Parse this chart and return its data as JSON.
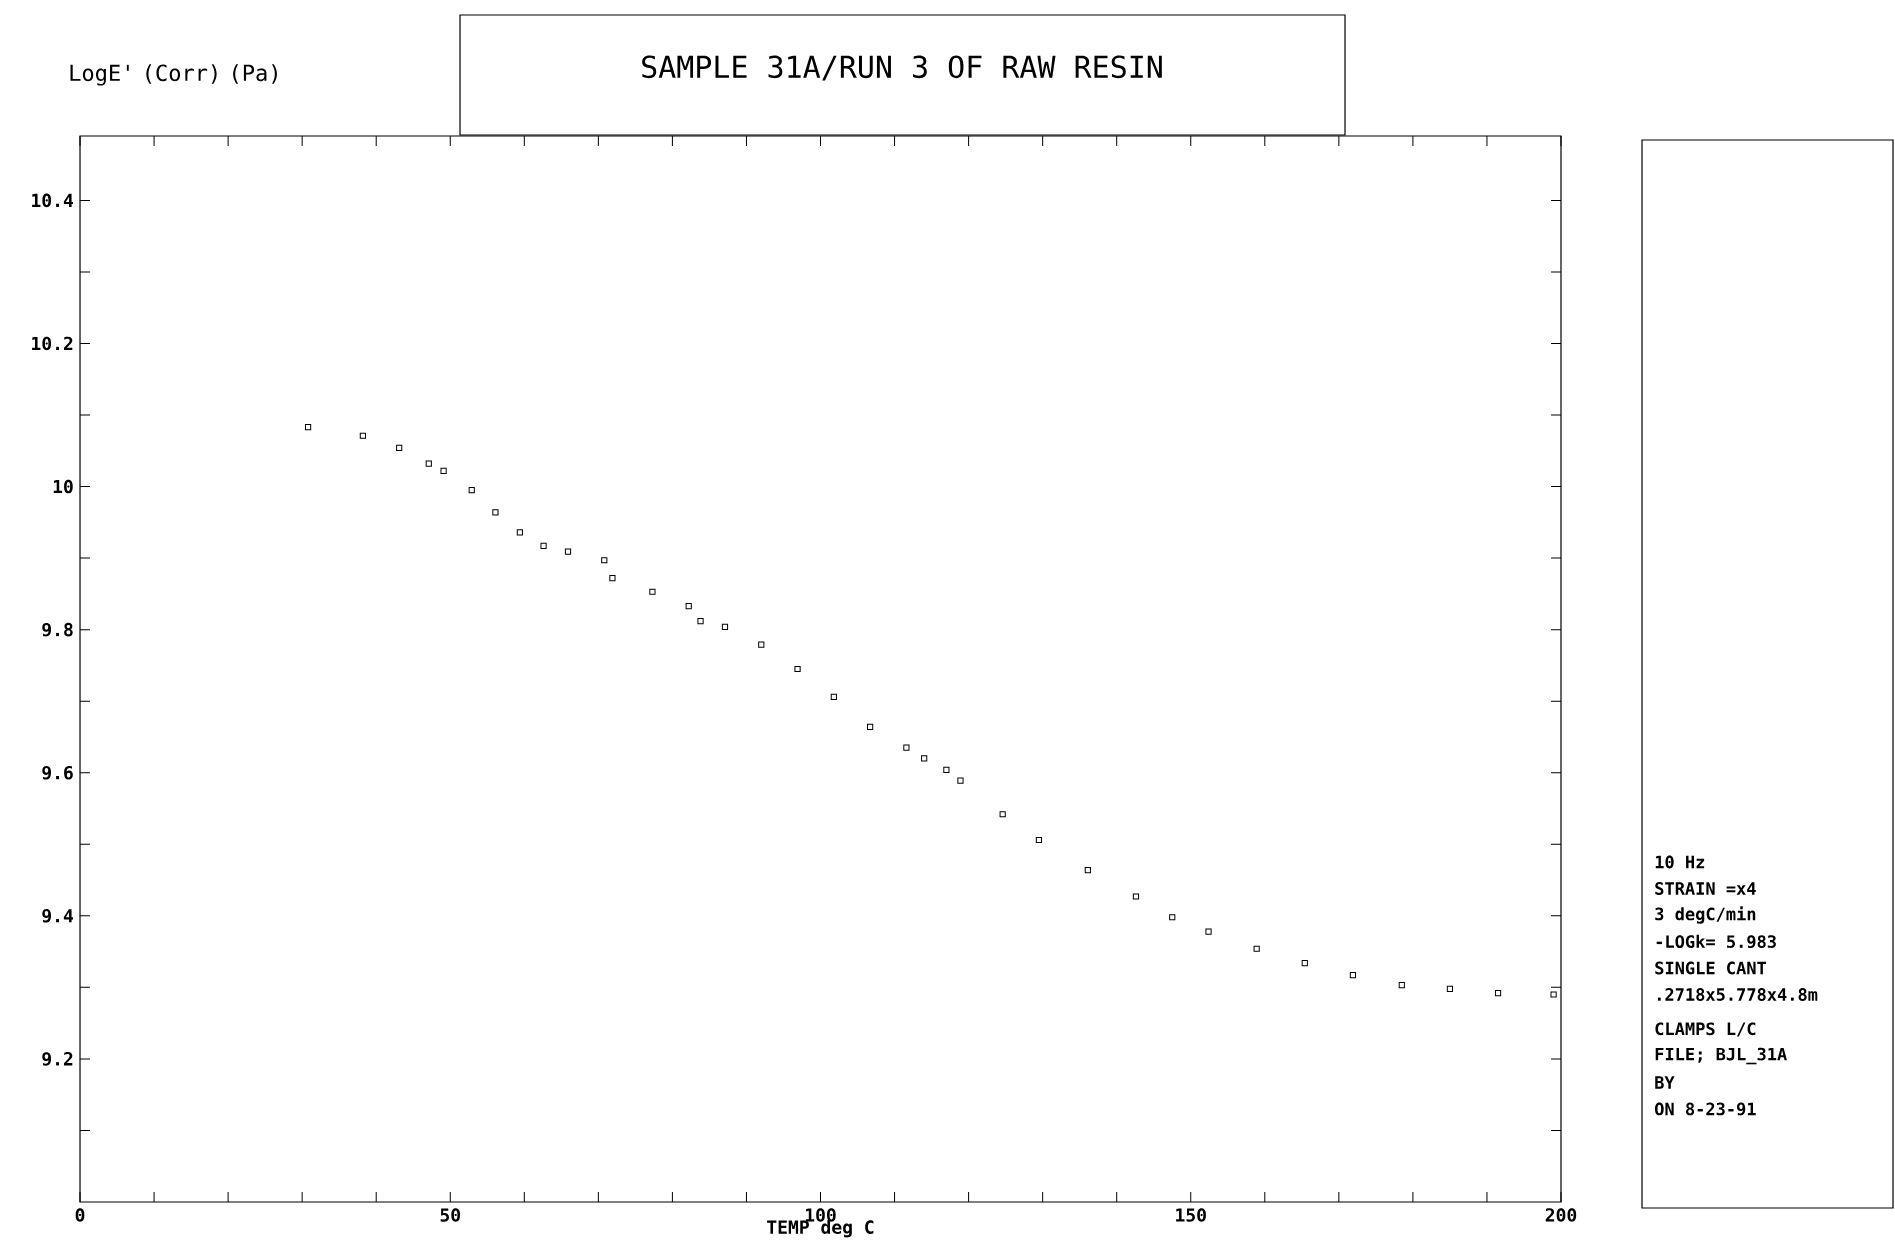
{
  "chart_data": {
    "type": "scatter",
    "title": "SAMPLE 31A/RUN 3 OF RAW RESIN",
    "xlabel": "TEMP deg C",
    "ylabel": "LogE' (Corr) (Pa)",
    "annotations": [
      "10 Hz",
      "STRAIN =x4",
      "3 degC/min",
      "-LOGk= 5.983",
      "SINGLE CANT",
      ".2718x5.778x4.8m",
      "CLAMPS L/C",
      "FILE; BJL_31A",
      "BY",
      "ON 8-23-91"
    ],
    "x": [
      30.8,
      38.2,
      43.1,
      47.1,
      49.1,
      52.9,
      56.1,
      59.4,
      62.6,
      65.9,
      70.8,
      71.9,
      77.3,
      82.2,
      83.8,
      87.1,
      92.0,
      96.9,
      101.8,
      106.7,
      111.6,
      114.0,
      117.0,
      118.9,
      124.6,
      129.5,
      136.1,
      142.6,
      147.5,
      152.4,
      158.9,
      165.4,
      171.9,
      178.5,
      185.0,
      191.5,
      199.0
    ],
    "series": [
      {
        "color": "#000000",
        "marker": "square",
        "values": [
          10.083,
          10.071,
          10.054,
          10.032,
          10.022,
          9.995,
          9.964,
          9.936,
          9.917,
          9.909,
          9.897,
          9.872,
          9.853,
          9.833,
          9.812,
          9.804,
          9.779,
          9.745,
          9.706,
          9.664,
          9.635,
          9.62,
          9.604,
          9.589,
          9.542,
          9.506,
          9.464,
          9.427,
          9.398,
          9.378,
          9.354,
          9.334,
          9.317,
          9.303,
          9.298,
          9.292,
          9.29
        ]
      }
    ],
    "xlim": [
      0,
      200
    ],
    "xticks": [
      0,
      {
        "value": 10,
        "label": null
      },
      {
        "value": 20,
        "label": null
      },
      {
        "value": 30,
        "label": null
      },
      {
        "value": 40,
        "label": null
      },
      50,
      {
        "value": 60,
        "label": null
      },
      {
        "value": 70,
        "label": null
      },
      {
        "value": 80,
        "label": null
      },
      {
        "value": 90,
        "label": null
      },
      100,
      {
        "value": 110,
        "label": null
      },
      {
        "value": 120,
        "label": null
      },
      {
        "value": 130,
        "label": null
      },
      {
        "value": 140,
        "label": null
      },
      150,
      {
        "value": 160,
        "label": null
      },
      {
        "value": 170,
        "label": null
      },
      {
        "value": 180,
        "label": null
      },
      {
        "value": 190,
        "label": null
      },
      200
    ],
    "ylim": [
      9.0,
      10.49
    ],
    "yticks": [
      {
        "value": 9.1,
        "label": null
      },
      9.2,
      {
        "value": 9.3,
        "label": null
      },
      9.4,
      {
        "value": 9.5,
        "label": null
      },
      9.6,
      {
        "value": 9.7,
        "label": null
      },
      9.8,
      {
        "value": 9.9,
        "label": null
      },
      10,
      {
        "value": 10.1,
        "label": null
      },
      10.2,
      {
        "value": 10.3,
        "label": null
      },
      10.4
    ]
  }
}
